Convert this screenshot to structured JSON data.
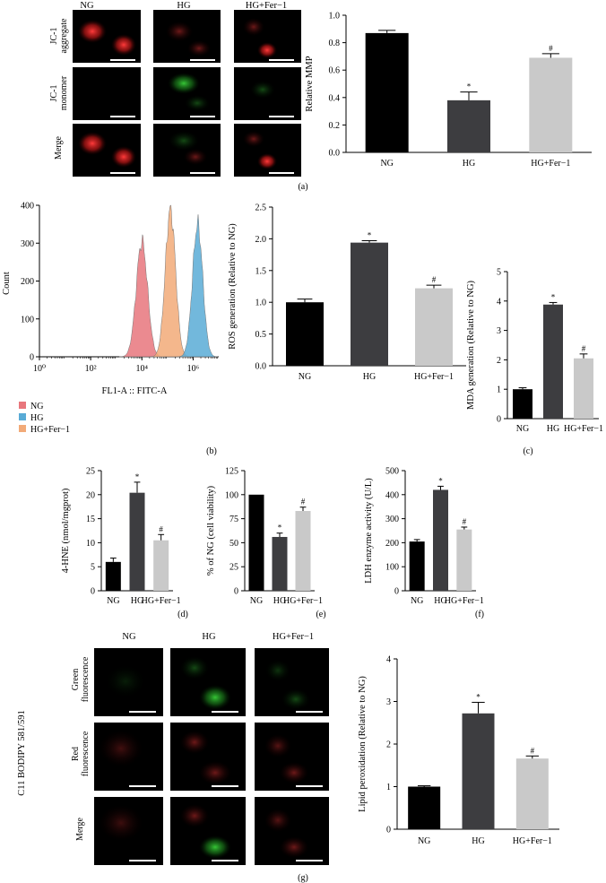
{
  "colors": {
    "NG": "#000000",
    "HG": "#3d3d40",
    "HGFer": "#c9c9c9",
    "hist_NG": "#e8767c",
    "hist_HG": "#59abd6",
    "hist_HGFer": "#f2aa78"
  },
  "panels": {
    "a": {
      "label": "(a)",
      "col_labels": [
        "NG",
        "HG",
        "HG+Fer−1"
      ],
      "row_labels": [
        [
          "JC-1",
          "aggregate"
        ],
        [
          "JC-1",
          "monomer"
        ],
        [
          "Merge"
        ]
      ]
    },
    "b": {
      "label": "(b)",
      "legend": [
        "NG",
        "HG",
        "HG+Fer−1"
      ]
    },
    "c": {
      "label": "(c)"
    },
    "d": {
      "label": "(d)"
    },
    "e": {
      "label": "(e)"
    },
    "f": {
      "label": "(f)"
    },
    "g": {
      "label": "(g)",
      "side_label": "C11 BODIPY 581/591",
      "col_labels": [
        "NG",
        "HG",
        "HG+Fer−1"
      ],
      "row_labels": [
        [
          "Green",
          "fluorescence"
        ],
        [
          "Red",
          "fluorescence"
        ],
        [
          "Merge"
        ]
      ]
    }
  },
  "chart_data": [
    {
      "id": "a_mmp",
      "type": "bar",
      "categories": [
        "NG",
        "HG",
        "HG+Fer−1"
      ],
      "values": [
        0.87,
        0.38,
        0.69
      ],
      "errors": [
        0.02,
        0.06,
        0.03
      ],
      "marks": [
        "",
        "*",
        "#"
      ],
      "ylabel": "Relative MMP",
      "ylim": [
        0,
        1.0
      ],
      "yticks": [
        "0.0",
        "0.2",
        "0.4",
        "0.6",
        "0.8",
        "1.0"
      ]
    },
    {
      "id": "b_histogram",
      "type": "area",
      "xlabel": "FL1-A :: FITC-A",
      "ylabel": "Count",
      "xscale": "log",
      "xlim": [
        1,
        10000000
      ],
      "ylim": [
        0,
        400
      ],
      "xticks": [
        "10⁰",
        "10²",
        "10⁴",
        "10⁶"
      ],
      "yticks": [
        "0",
        "100",
        "200",
        "300",
        "400"
      ],
      "series": [
        {
          "name": "NG",
          "peak_x": 10000,
          "peak_count": 305
        },
        {
          "name": "HG",
          "peak_x": 1500000,
          "peak_count": 350
        },
        {
          "name": "HG+Fer−1",
          "peak_x": 130000,
          "peak_count": 390
        }
      ]
    },
    {
      "id": "b_ros",
      "type": "bar",
      "categories": [
        "NG",
        "HG",
        "HG+Fer−1"
      ],
      "values": [
        1.0,
        1.94,
        1.22
      ],
      "errors": [
        0.05,
        0.03,
        0.05
      ],
      "marks": [
        "",
        "*",
        "#"
      ],
      "ylabel": "ROS generation (Relative to NG)",
      "ylim": [
        0,
        2.5
      ],
      "yticks": [
        "0.0",
        "0.5",
        "1.0",
        "1.5",
        "2.0",
        "2.5"
      ]
    },
    {
      "id": "c_mda",
      "type": "bar",
      "categories": [
        "NG",
        "HG",
        "HG+Fer−1"
      ],
      "values": [
        1.0,
        3.88,
        2.05
      ],
      "errors": [
        0.05,
        0.07,
        0.15
      ],
      "marks": [
        "",
        "*",
        "#"
      ],
      "ylabel": "MDA generation (Relative to NG)",
      "ylim": [
        0,
        5
      ],
      "yticks": [
        "0",
        "1",
        "2",
        "3",
        "4",
        "5"
      ]
    },
    {
      "id": "d_hne",
      "type": "bar",
      "categories": [
        "NG",
        "HG",
        "HG+Fer−1"
      ],
      "values": [
        6.0,
        20.4,
        10.5
      ],
      "errors": [
        0.8,
        2.2,
        1.2
      ],
      "marks": [
        "",
        "*",
        "#"
      ],
      "ylabel": "4-HNE (nmol/mgprot)",
      "ylim": [
        0,
        25
      ],
      "yticks": [
        "0",
        "5",
        "10",
        "15",
        "20",
        "25"
      ]
    },
    {
      "id": "e_viability",
      "type": "bar",
      "categories": [
        "NG",
        "HG",
        "HG+Fer−1"
      ],
      "values": [
        100,
        56,
        83
      ],
      "errors": [
        0,
        4,
        4
      ],
      "marks": [
        "",
        "*",
        "#"
      ],
      "ylabel": "% of NG (cell viability)",
      "ylim": [
        0,
        125
      ],
      "yticks": [
        "0",
        "25",
        "50",
        "75",
        "100",
        "125"
      ]
    },
    {
      "id": "f_ldh",
      "type": "bar",
      "categories": [
        "NG",
        "HG",
        "HG+Fer−1"
      ],
      "values": [
        205,
        420,
        255
      ],
      "errors": [
        8,
        15,
        10
      ],
      "marks": [
        "",
        "*",
        "#"
      ],
      "ylabel": "LDH enzyme activity (U/L)",
      "ylim": [
        0,
        500
      ],
      "yticks": [
        "0",
        "100",
        "200",
        "300",
        "400",
        "500"
      ]
    },
    {
      "id": "g_lipid",
      "type": "bar",
      "categories": [
        "NG",
        "HG",
        "HG+Fer−1"
      ],
      "values": [
        1.0,
        2.72,
        1.66
      ],
      "errors": [
        0.02,
        0.26,
        0.06
      ],
      "marks": [
        "",
        "*",
        "#"
      ],
      "ylabel": "Lipid peroxidation (Relative to NG)",
      "ylim": [
        0,
        4
      ],
      "yticks": [
        "0",
        "1",
        "2",
        "3",
        "4"
      ]
    }
  ]
}
